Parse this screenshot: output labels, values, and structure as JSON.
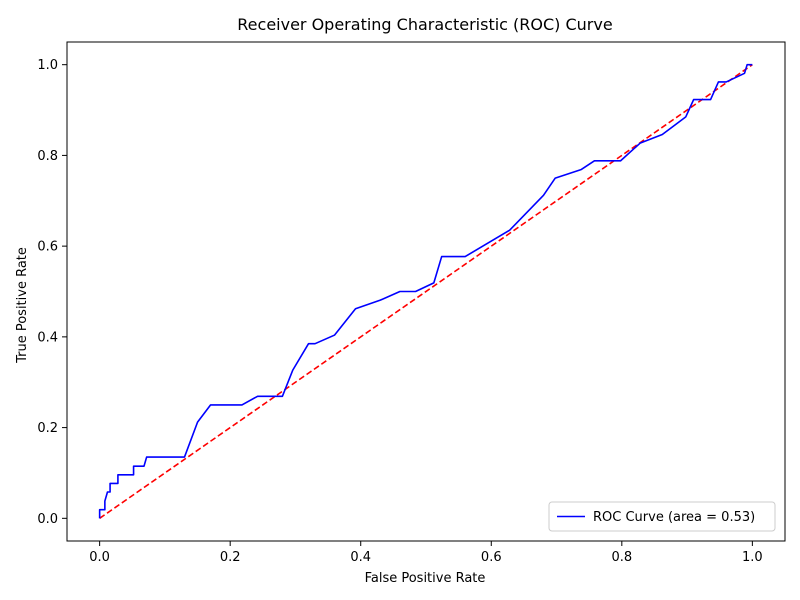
{
  "chart_data": {
    "type": "line",
    "title": "Receiver Operating Characteristic (ROC) Curve",
    "xlabel": "False Positive Rate",
    "ylabel": "True Positive Rate",
    "xlim": [
      -0.05,
      1.05
    ],
    "ylim": [
      -0.05,
      1.05
    ],
    "xticks": [
      0.0,
      0.2,
      0.4,
      0.6,
      0.8,
      1.0
    ],
    "yticks": [
      0.0,
      0.2,
      0.4,
      0.6,
      0.8,
      1.0
    ],
    "xtick_labels": [
      "0.0",
      "0.2",
      "0.4",
      "0.6",
      "0.8",
      "1.0"
    ],
    "ytick_labels": [
      "0.0",
      "0.2",
      "0.4",
      "0.6",
      "0.8",
      "1.0"
    ],
    "grid": false,
    "legend_position": "lower-right",
    "series": [
      {
        "name": "ROC Curve (area = 0.53)",
        "color": "#0000ff",
        "style": "solid",
        "x": [
          0.0,
          0.0,
          0.0,
          0.008,
          0.008,
          0.012,
          0.016,
          0.016,
          0.028,
          0.028,
          0.052,
          0.052,
          0.068,
          0.072,
          0.072,
          0.13,
          0.15,
          0.17,
          0.218,
          0.242,
          0.28,
          0.296,
          0.32,
          0.33,
          0.36,
          0.392,
          0.43,
          0.46,
          0.484,
          0.512,
          0.524,
          0.56,
          0.628,
          0.68,
          0.698,
          0.738,
          0.758,
          0.798,
          0.828,
          0.862,
          0.898,
          0.91,
          0.936,
          0.948,
          0.96,
          0.988,
          0.992,
          1.0
        ],
        "y": [
          0.0,
          0.019,
          0.019,
          0.019,
          0.038,
          0.058,
          0.058,
          0.077,
          0.077,
          0.096,
          0.096,
          0.115,
          0.115,
          0.135,
          0.135,
          0.135,
          0.212,
          0.25,
          0.25,
          0.269,
          0.269,
          0.327,
          0.385,
          0.385,
          0.404,
          0.462,
          0.481,
          0.5,
          0.5,
          0.519,
          0.577,
          0.577,
          0.635,
          0.712,
          0.75,
          0.769,
          0.788,
          0.788,
          0.827,
          0.846,
          0.885,
          0.923,
          0.923,
          0.962,
          0.962,
          0.981,
          1.0,
          1.0
        ]
      },
      {
        "name": "",
        "color": "#ff0000",
        "style": "dashed",
        "x": [
          0.0,
          1.0
        ],
        "y": [
          0.0,
          1.0
        ]
      }
    ],
    "legend": [
      {
        "label": "ROC Curve (area = 0.53)",
        "color": "#0000ff"
      }
    ]
  }
}
